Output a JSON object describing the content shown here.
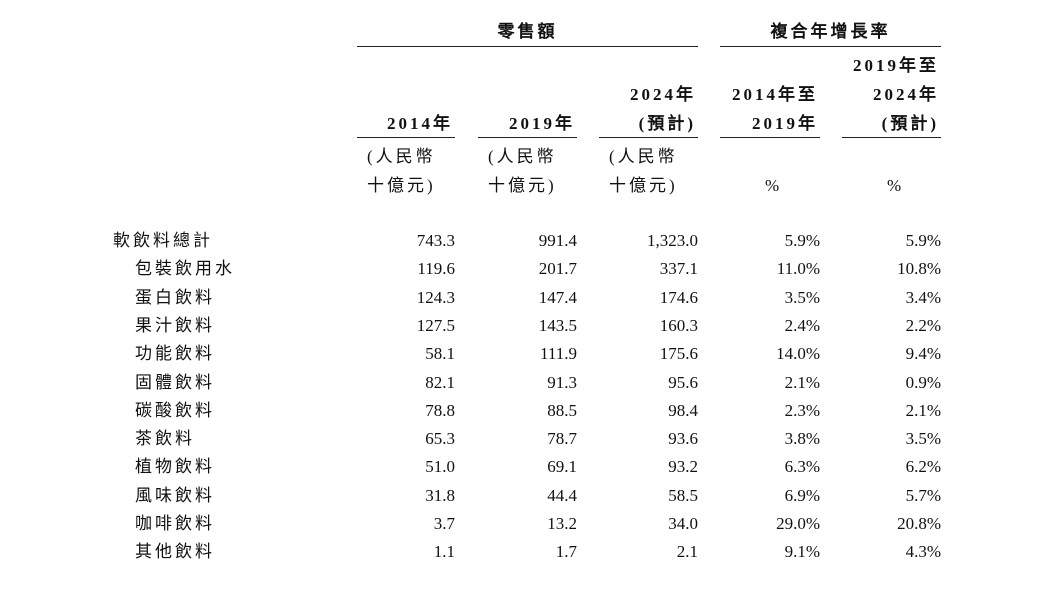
{
  "table": {
    "groups": [
      "零售額",
      "複合年增長率"
    ],
    "columns": [
      {
        "header": [
          "2014年"
        ],
        "unit": [
          "(人民幣",
          "十億元)"
        ]
      },
      {
        "header": [
          "2019年"
        ],
        "unit": [
          "(人民幣",
          "十億元)"
        ]
      },
      {
        "header": [
          "2024年",
          "(預計)"
        ],
        "unit": [
          "(人民幣",
          "十億元)"
        ]
      },
      {
        "header": [
          "2014年至",
          "2019年"
        ],
        "unit": [
          "%"
        ]
      },
      {
        "header": [
          "2019年至",
          "2024年",
          "(預計)"
        ],
        "unit": [
          "%"
        ]
      }
    ],
    "rows": [
      {
        "label": "軟飲料總計",
        "cells": [
          "743.3",
          "991.4",
          "1,323.0",
          "5.9%",
          "5.9%"
        ]
      },
      {
        "label": "包裝飲用水",
        "cells": [
          "119.6",
          "201.7",
          "337.1",
          "11.0%",
          "10.8%"
        ]
      },
      {
        "label": "蛋白飲料",
        "cells": [
          "124.3",
          "147.4",
          "174.6",
          "3.5%",
          "3.4%"
        ]
      },
      {
        "label": "果汁飲料",
        "cells": [
          "127.5",
          "143.5",
          "160.3",
          "2.4%",
          "2.2%"
        ]
      },
      {
        "label": "功能飲料",
        "cells": [
          "58.1",
          "111.9",
          "175.6",
          "14.0%",
          "9.4%"
        ]
      },
      {
        "label": "固體飲料",
        "cells": [
          "82.1",
          "91.3",
          "95.6",
          "2.1%",
          "0.9%"
        ]
      },
      {
        "label": "碳酸飲料",
        "cells": [
          "78.8",
          "88.5",
          "98.4",
          "2.3%",
          "2.1%"
        ]
      },
      {
        "label": "茶飲料",
        "cells": [
          "65.3",
          "78.7",
          "93.6",
          "3.8%",
          "3.5%"
        ]
      },
      {
        "label": "植物飲料",
        "cells": [
          "51.0",
          "69.1",
          "93.2",
          "6.3%",
          "6.2%"
        ]
      },
      {
        "label": "風味飲料",
        "cells": [
          "31.8",
          "44.4",
          "58.5",
          "6.9%",
          "5.7%"
        ]
      },
      {
        "label": "咖啡飲料",
        "cells": [
          "3.7",
          "13.2",
          "34.0",
          "29.0%",
          "20.8%"
        ]
      },
      {
        "label": "其他飲料",
        "cells": [
          "1.1",
          "1.7",
          "2.1",
          "9.1%",
          "4.3%"
        ]
      }
    ]
  }
}
